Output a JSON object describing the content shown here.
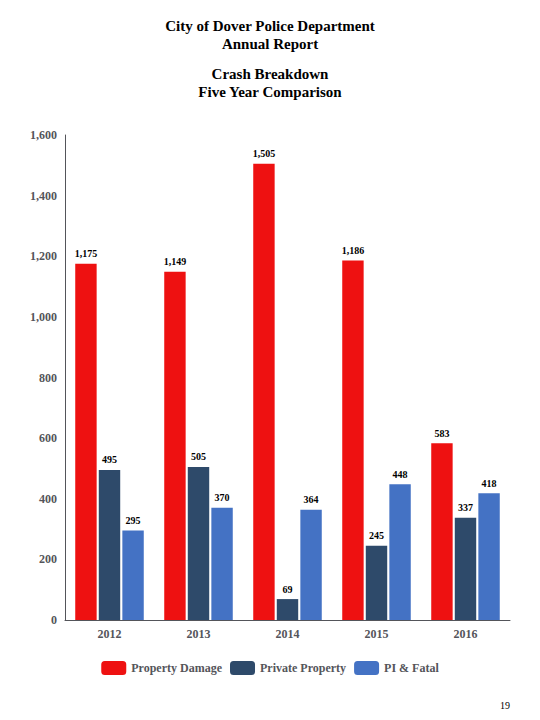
{
  "chart_data": {
    "type": "bar",
    "title": "City of Dover Police Department\nAnnual Report",
    "subtitle": "Crash Breakdown\nFive Year Comparison",
    "annotations": [
      "19"
    ],
    "categories": [
      "2012",
      "2013",
      "2014",
      "2015",
      "2016"
    ],
    "series": [
      {
        "name": "Property Damage",
        "color": "#EE1111",
        "values": [
          1175,
          1149,
          1505,
          1186,
          583
        ],
        "value_labels": [
          "1,175",
          "1,149",
          "1,505",
          "1,186",
          "583"
        ]
      },
      {
        "name": "Private Property",
        "color": "#2E4A6A",
        "values": [
          495,
          505,
          69,
          245,
          337
        ]
      },
      {
        "name": "PI & Fatal",
        "color": "#4472C4",
        "values": [
          295,
          370,
          364,
          448,
          418
        ]
      }
    ],
    "ylim": [
      0,
      1600
    ],
    "yticks": [
      0,
      200,
      400,
      600,
      800,
      {
        "value": 1000,
        "label": "1,000"
      },
      {
        "value": 1200,
        "label": "1,200"
      },
      {
        "value": 1400,
        "label": "1,400"
      },
      {
        "value": 1600,
        "label": "1,600"
      }
    ],
    "grid": false,
    "legend": "bottom",
    "data_labels": true
  }
}
